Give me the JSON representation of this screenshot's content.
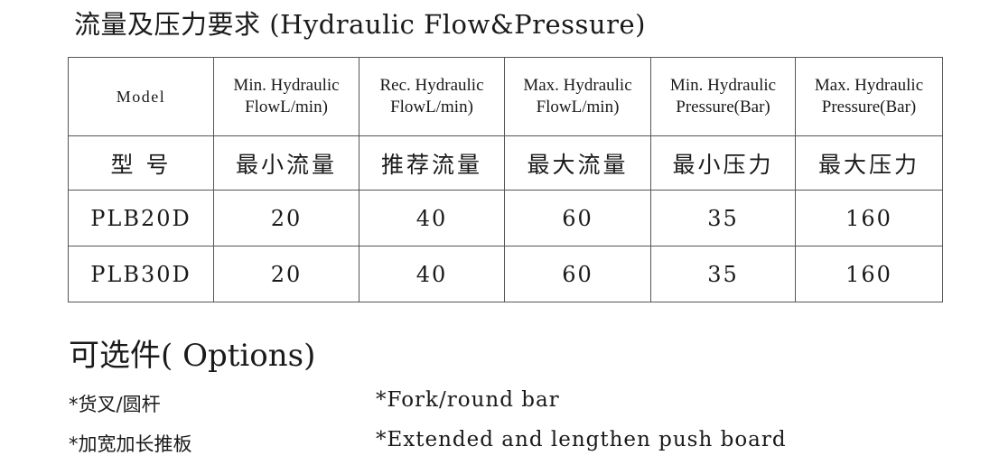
{
  "title": "流量及压力要求 (Hydraulic Flow&Pressure)",
  "table": {
    "header_en": [
      "Model",
      "Min. Hydraulic FlowL/min)",
      "Rec. Hydraulic FlowL/min)",
      "Max. Hydraulic FlowL/min)",
      "Min. Hydraulic Pressure(Bar)",
      "Max. Hydraulic Pressure(Bar)"
    ],
    "header_cn": [
      "型 号",
      "最小流量",
      "推荐流量",
      "最大流量",
      "最小压力",
      "最大压力"
    ],
    "rows": [
      [
        "PLB20D",
        "20",
        "40",
        "60",
        "35",
        "160"
      ],
      [
        "PLB30D",
        "20",
        "40",
        "60",
        "35",
        "160"
      ]
    ]
  },
  "options": {
    "title": "可选件( Options)",
    "items": [
      {
        "cn": "*货叉/圆杆",
        "en": "*Fork/round bar"
      },
      {
        "cn": "*加宽加长推板",
        "en": "*Extended and lengthen push board"
      }
    ]
  }
}
